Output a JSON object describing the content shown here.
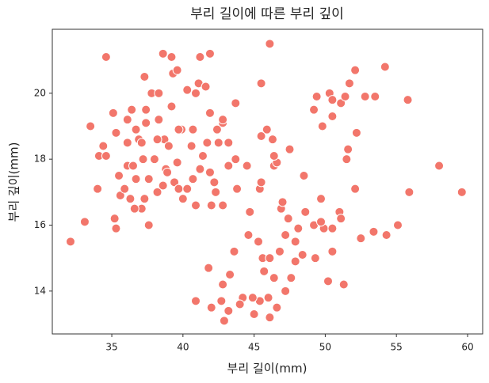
{
  "chart_data": {
    "type": "scatter",
    "title": "부리 길이에 따른 부리 깊이",
    "x_label": "부리 길이(mm)",
    "y_label": "부리 깊이(mm)",
    "color": "#f2766b",
    "xlim": [
      30.82,
      61.06
    ],
    "ylim": [
      12.7,
      21.94
    ],
    "xticks": [
      35,
      40,
      45,
      50,
      55,
      60
    ],
    "yticks": [
      14,
      16,
      18,
      20
    ],
    "x": [
      32.1,
      33.1,
      33.5,
      34.6,
      34.0,
      34.4,
      34.1,
      34.6,
      35.2,
      35.3,
      35.5,
      35.6,
      35.9,
      36.1,
      36.1,
      36.4,
      36.1,
      35.1,
      35.3,
      36.7,
      36.9,
      37.1,
      37.3,
      37.1,
      37.6,
      37.8,
      38.3,
      38.6,
      39.2,
      39.2,
      39.3,
      39.6,
      38.7,
      38.2,
      38.0,
      38.6,
      38.8,
      38.9,
      39.4,
      39.7,
      40.0,
      40.9,
      40.3,
      40.7,
      40.6,
      39.9,
      39.7,
      40.7,
      40.3,
      40.9,
      41.1,
      41.2,
      41.9,
      41.6,
      41.9,
      42.4,
      42.8,
      42.5,
      43.2,
      42.8,
      43.7,
      43.7,
      44.5,
      44.7,
      46.1,
      45.5,
      45.9,
      45.5,
      46.3,
      46.4,
      46.6,
      47.5,
      48.5,
      49.7,
      49.2,
      49.4,
      49.8,
      50.3,
      50.5,
      50.5,
      51.1,
      51.4,
      51.7,
      52.1,
      52.8,
      53.5,
      54.2,
      55.8,
      58.0,
      59.6,
      55.9,
      55.1,
      54.3,
      53.4,
      52.5,
      51.3,
      50.2,
      52.1,
      52.2,
      51.6,
      51.5,
      51.0,
      51.1,
      49.9,
      50.5,
      50.5,
      49.3,
      48.6,
      48.1,
      47.9,
      47.2,
      47.6,
      46.4,
      46.0,
      46.1,
      46.6,
      45.4,
      44.9,
      45.0,
      44.2,
      42.9,
      44.0,
      43.2,
      42.7,
      42.0,
      40.9,
      41.8,
      42.8,
      43.3,
      43.6,
      44.6,
      45.3,
      45.6,
      45.7,
      46.1,
      46.8,
      46.9,
      47.2,
      47.4,
      47.9,
      48.4,
      49.2,
      49.7,
      43.2,
      42.2,
      42.3,
      42.0,
      42.8,
      41.4,
      41.7,
      41.9,
      41.2,
      43.8,
      45.4,
      45.5,
      46.4,
      47.0,
      37.3,
      36.6,
      36.3,
      37.4,
      38.3,
      37.4,
      36.5,
      36.7,
      37.6,
      38.2,
      37.2,
      39.0,
      39.6
    ],
    "values": [
      15.5,
      16.1,
      19.0,
      21.1,
      17.1,
      18.4,
      18.1,
      18.1,
      16.2,
      15.9,
      17.5,
      16.9,
      17.1,
      17.8,
      18.5,
      19.5,
      19.2,
      19.4,
      18.8,
      18.9,
      18.6,
      18.5,
      20.5,
      16.5,
      16.0,
      20.0,
      20.0,
      21.2,
      21.1,
      19.6,
      20.6,
      20.7,
      18.6,
      18.6,
      18.0,
      17.2,
      17.7,
      17.6,
      17.3,
      17.1,
      16.8,
      16.6,
      17.1,
      17.4,
      18.4,
      18.9,
      18.9,
      18.9,
      20.1,
      20.0,
      20.3,
      21.1,
      21.2,
      20.2,
      19.4,
      18.9,
      19.1,
      18.5,
      18.5,
      19.2,
      18.0,
      19.7,
      17.8,
      16.4,
      21.5,
      20.3,
      18.9,
      18.7,
      18.6,
      17.8,
      17.9,
      18.3,
      17.5,
      16.8,
      19.5,
      19.9,
      19.0,
      20.0,
      19.8,
      19.3,
      19.7,
      19.9,
      20.3,
      20.7,
      19.9,
      19.9,
      20.8,
      19.8,
      17.8,
      17.0,
      17.0,
      16.0,
      15.7,
      15.8,
      15.6,
      14.2,
      14.3,
      17.1,
      18.8,
      18.3,
      18.0,
      16.4,
      16.2,
      15.9,
      15.9,
      15.2,
      15.0,
      16.4,
      15.9,
      14.9,
      14.0,
      14.4,
      14.4,
      13.8,
      13.2,
      13.5,
      13.7,
      13.8,
      13.3,
      13.8,
      13.1,
      13.6,
      13.4,
      13.7,
      13.5,
      13.7,
      14.7,
      14.2,
      14.5,
      15.2,
      15.7,
      15.5,
      15.0,
      14.6,
      15.0,
      15.2,
      16.5,
      15.7,
      16.2,
      15.5,
      15.1,
      16.0,
      16.1,
      17.8,
      17.3,
      17.0,
      16.6,
      16.6,
      18.1,
      18.5,
      17.6,
      17.7,
      17.1,
      17.1,
      17.3,
      18.1,
      16.7,
      16.8,
      16.5,
      16.8,
      19.1,
      19.2,
      19.5,
      17.8,
      17.4,
      17.4,
      17.0,
      18.0,
      18.4,
      17.9
    ]
  }
}
